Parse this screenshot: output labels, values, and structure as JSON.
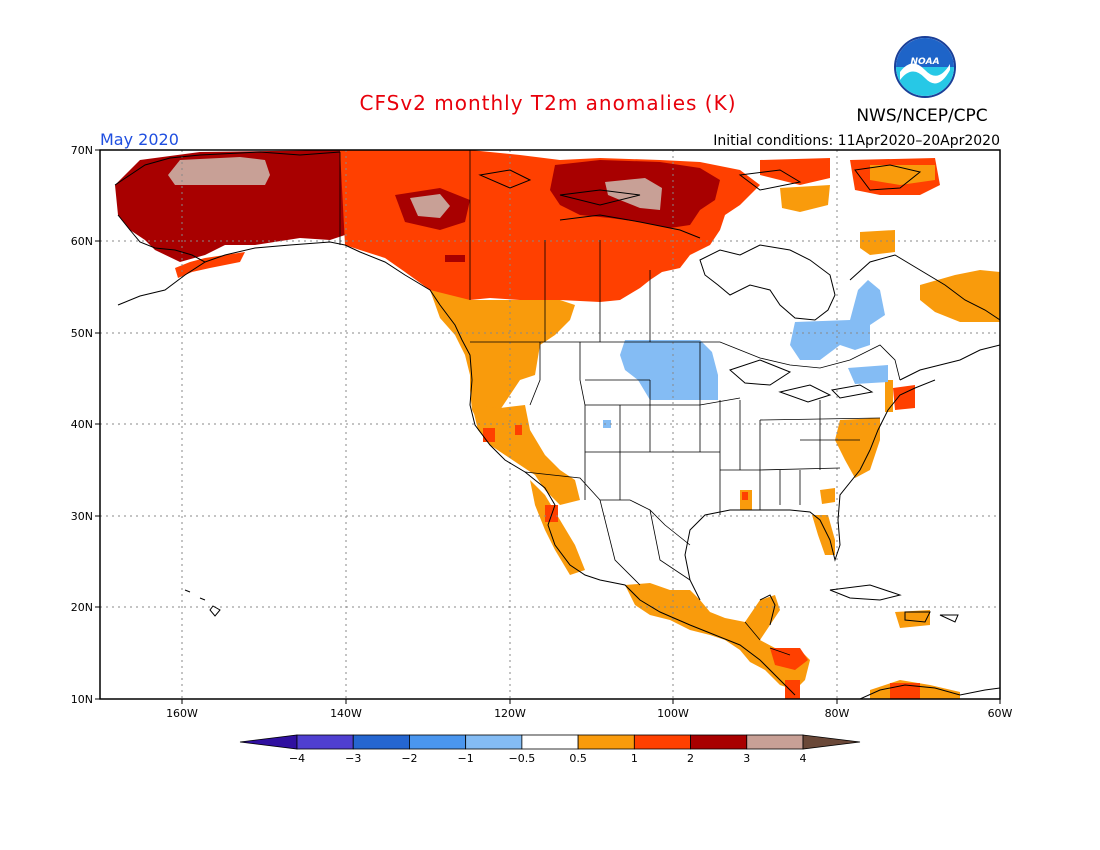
{
  "title": "CFSv2 monthly T2m anomalies (K)",
  "agency": "NWS/NCEP/CPC",
  "logo_text": "NOAA",
  "valid_month": "May 2020",
  "initial_conditions": "Initial conditions: 11Apr2020–20Apr2020",
  "colors": {
    "title": "#e8000b",
    "month": "#1f4fe0",
    "text": "#000000",
    "grid": "#888888",
    "border": "#000000",
    "noaa_blue": "#1e64c8",
    "noaa_cyan": "#27c8e6"
  },
  "lon_labels": [
    "160W",
    "140W",
    "120W",
    "100W",
    "80W",
    "60W"
  ],
  "lat_labels": [
    "70N",
    "60N",
    "50N",
    "40N",
    "30N",
    "20N",
    "10N"
  ],
  "colorbar": {
    "tick_labels": [
      "−4",
      "−3",
      "−2",
      "−1",
      "−0.5",
      "0.5",
      "1",
      "2",
      "3",
      "4"
    ],
    "bins": [
      {
        "range": "< -4",
        "color": "#3010a0"
      },
      {
        "range": "-4 to -3",
        "color": "#4f3fd0"
      },
      {
        "range": "-3 to -2",
        "color": "#2566d0"
      },
      {
        "range": "-2 to -1",
        "color": "#4a96ee"
      },
      {
        "range": "-1 to -0.5",
        "color": "#84bcf4"
      },
      {
        "range": "-0.5 to 0.5",
        "color": "#ffffff"
      },
      {
        "range": "0.5 to 1",
        "color": "#f99b0c"
      },
      {
        "range": "1 to 2",
        "color": "#ff4000"
      },
      {
        "range": "2 to 3",
        "color": "#a80000"
      },
      {
        "range": "3 to 4",
        "color": "#c8a096"
      },
      {
        "range": "> 4",
        "color": "#6a4838"
      }
    ]
  },
  "anomaly_regions": [
    {
      "name": "alaska-yukon",
      "category": "2 to 3",
      "color": "#a80000"
    },
    {
      "name": "alaska-interior",
      "category": "3 to 4",
      "color": "#c8a096"
    },
    {
      "name": "western-canada",
      "category": "1 to 2",
      "color": "#ff4000"
    },
    {
      "name": "canadian-arctic",
      "category": "1 to 2",
      "color": "#ff4000"
    },
    {
      "name": "hudson-bay-north",
      "category": "3 to 4",
      "color": "#c8a096"
    },
    {
      "name": "west-coast-us",
      "category": "0.5 to 1",
      "color": "#f99b0c"
    },
    {
      "name": "mexico-central-america",
      "category": "0.5 to 1",
      "color": "#f99b0c"
    },
    {
      "name": "northern-plains",
      "category": "-1 to -0.5",
      "color": "#84bcf4"
    },
    {
      "name": "quebec",
      "category": "-1 to -0.5",
      "color": "#84bcf4"
    },
    {
      "name": "labrador",
      "category": "0.5 to 1",
      "color": "#f99b0c"
    },
    {
      "name": "mid-atlantic",
      "category": "0.5 to 1",
      "color": "#f99b0c"
    }
  ]
}
